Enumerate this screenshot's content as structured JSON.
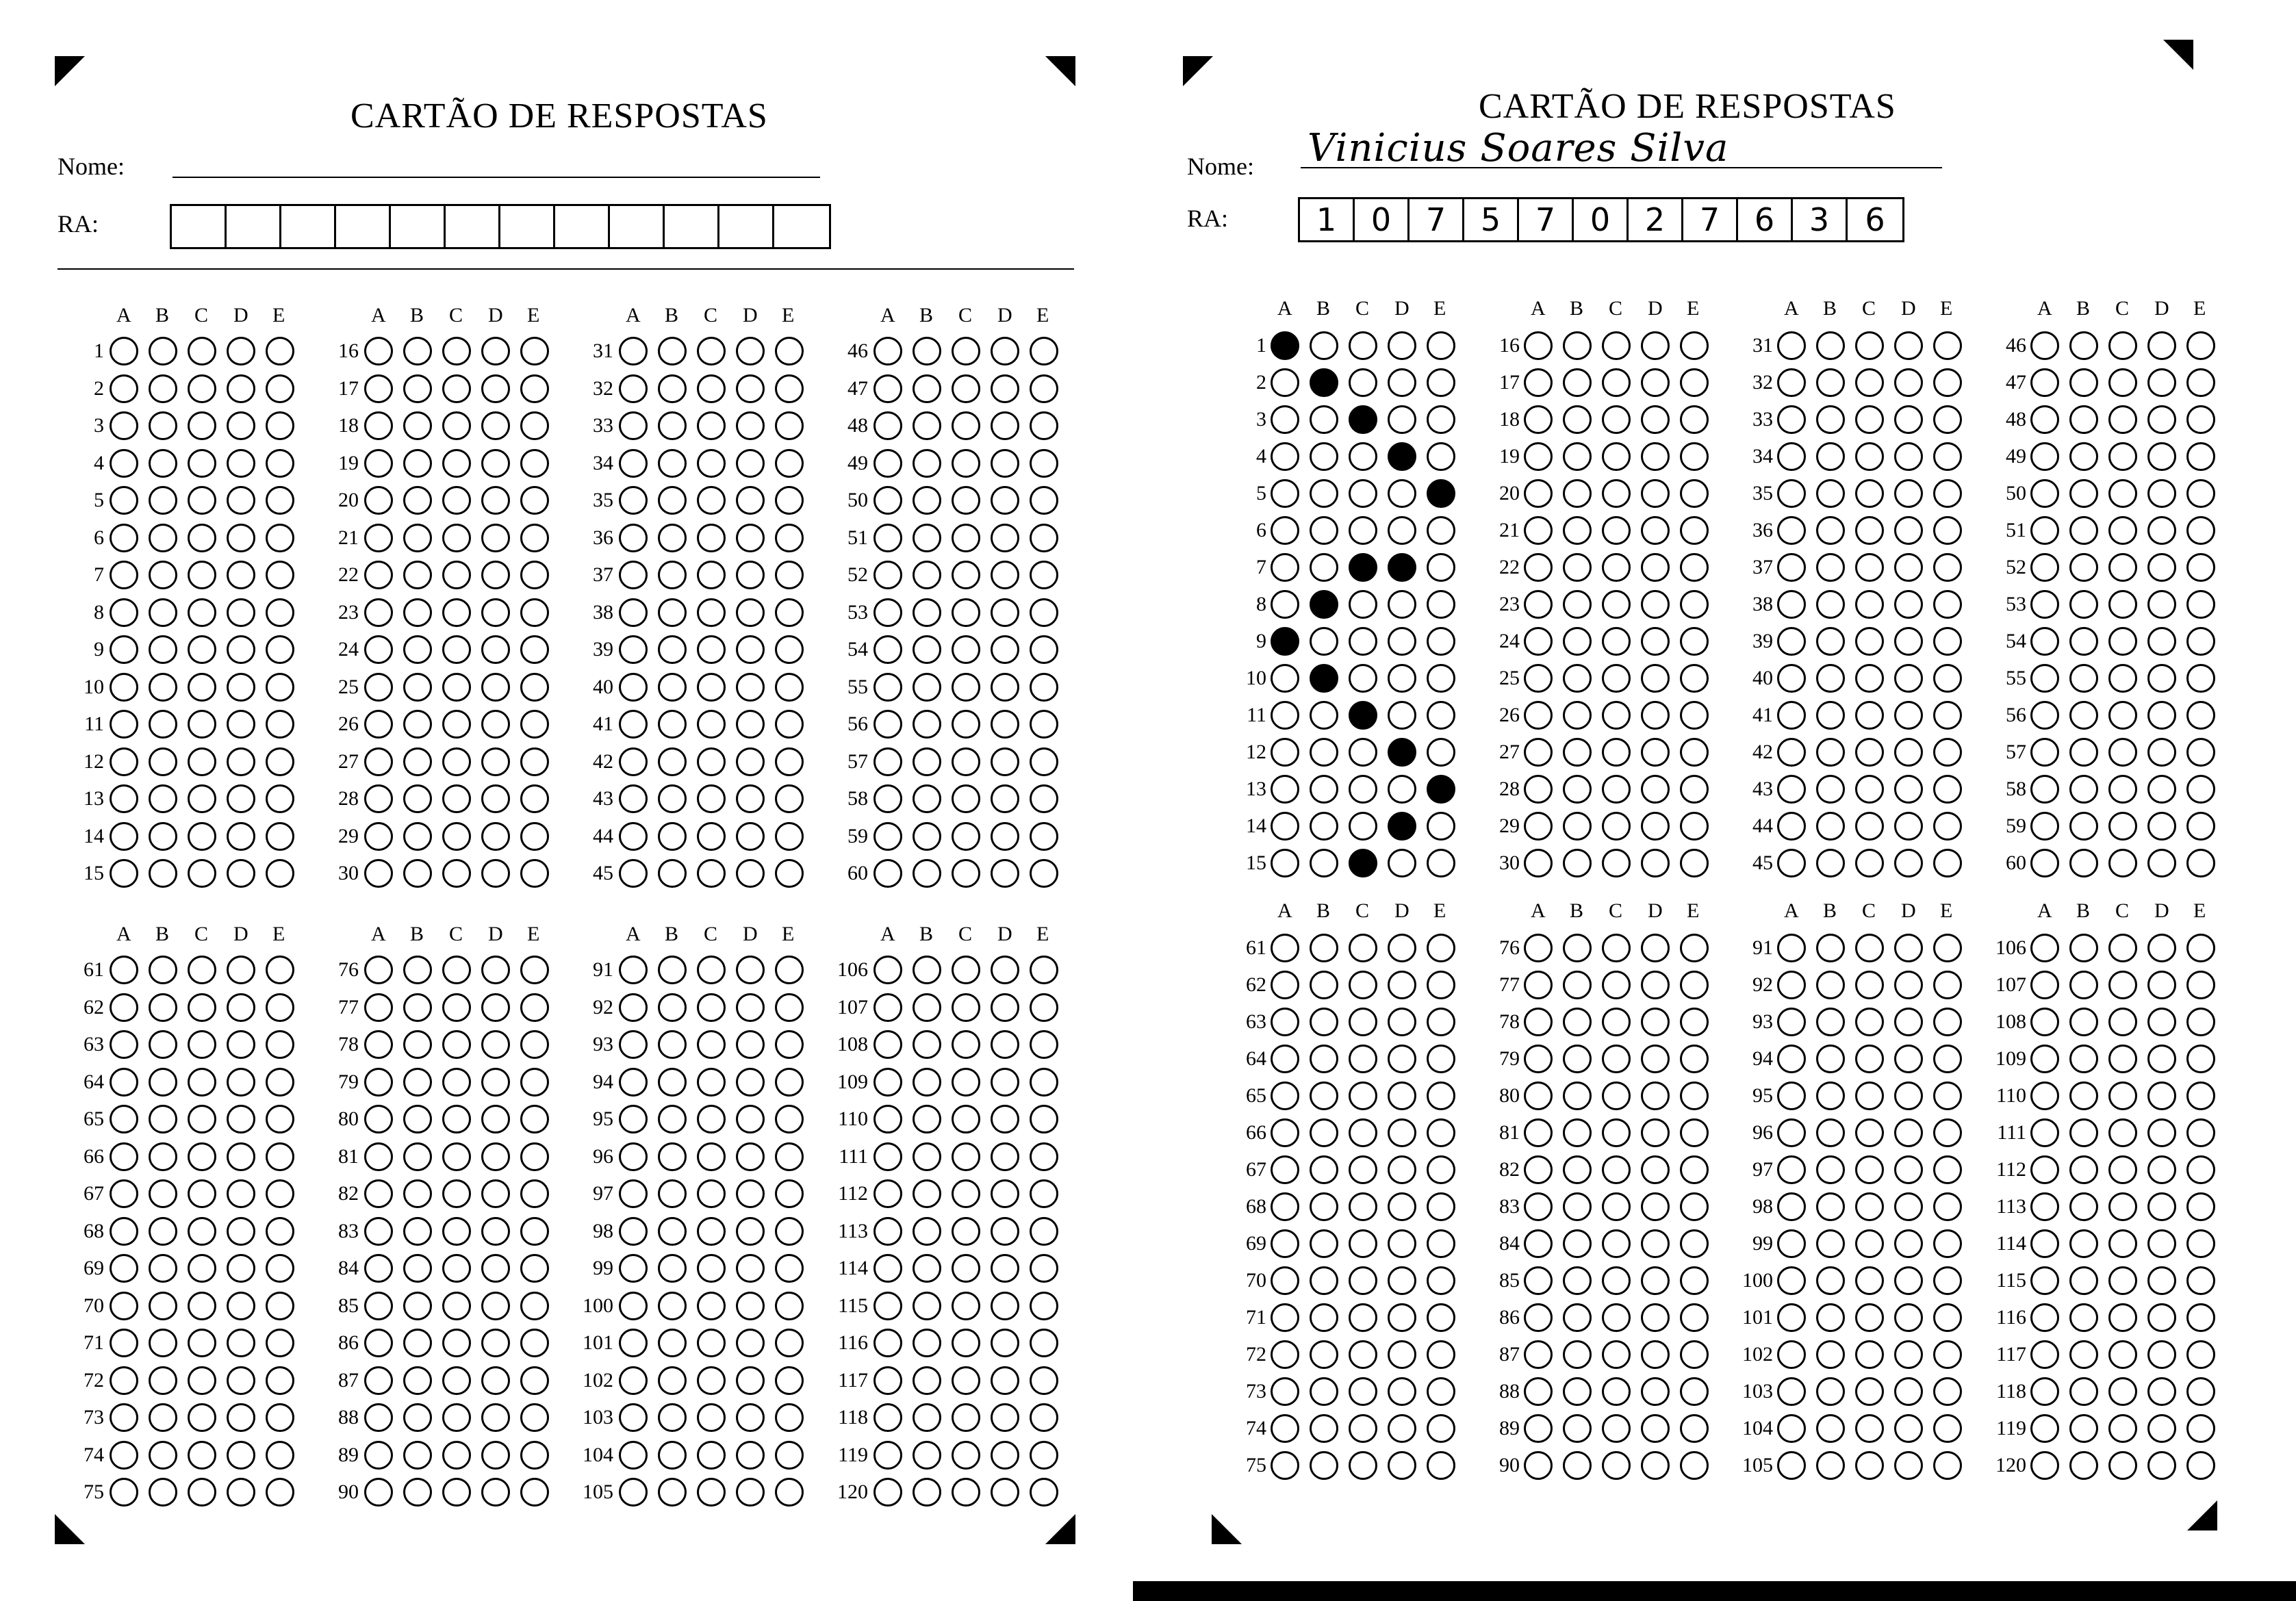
{
  "sheets": [
    {
      "id": "left",
      "title": "CARTÃO DE RESPOSTAS",
      "name_label": "Nome:",
      "name_value": "",
      "ra_label": "RA:",
      "ra_digits": [
        "",
        "",
        "",
        "",
        "",
        "",
        "",
        "",
        "",
        "",
        "",
        ""
      ],
      "filled": {}
    },
    {
      "id": "right",
      "title": "CARTÃO DE RESPOSTAS",
      "name_label": "Nome:",
      "name_value": "Vinicius Soares Silva",
      "ra_label": "RA:",
      "ra_digits": [
        "1",
        "0",
        "7",
        "5",
        "7",
        "0",
        "2",
        "7",
        "6",
        "3",
        "6"
      ],
      "filled": {
        "1": "A",
        "2": "B",
        "3": "C",
        "4": "D",
        "5": "E",
        "7": "C,D",
        "8": "B",
        "9": "A",
        "10": "B",
        "11": "C",
        "12": "D",
        "13": "E",
        "14": "D",
        "15": "C"
      }
    }
  ],
  "options": [
    "A",
    "B",
    "C",
    "D",
    "E"
  ],
  "questions_per_column": 15,
  "total_questions": 120,
  "icons": {
    "corner": "registration-mark-icon",
    "bubble": "answer-bubble-icon"
  }
}
